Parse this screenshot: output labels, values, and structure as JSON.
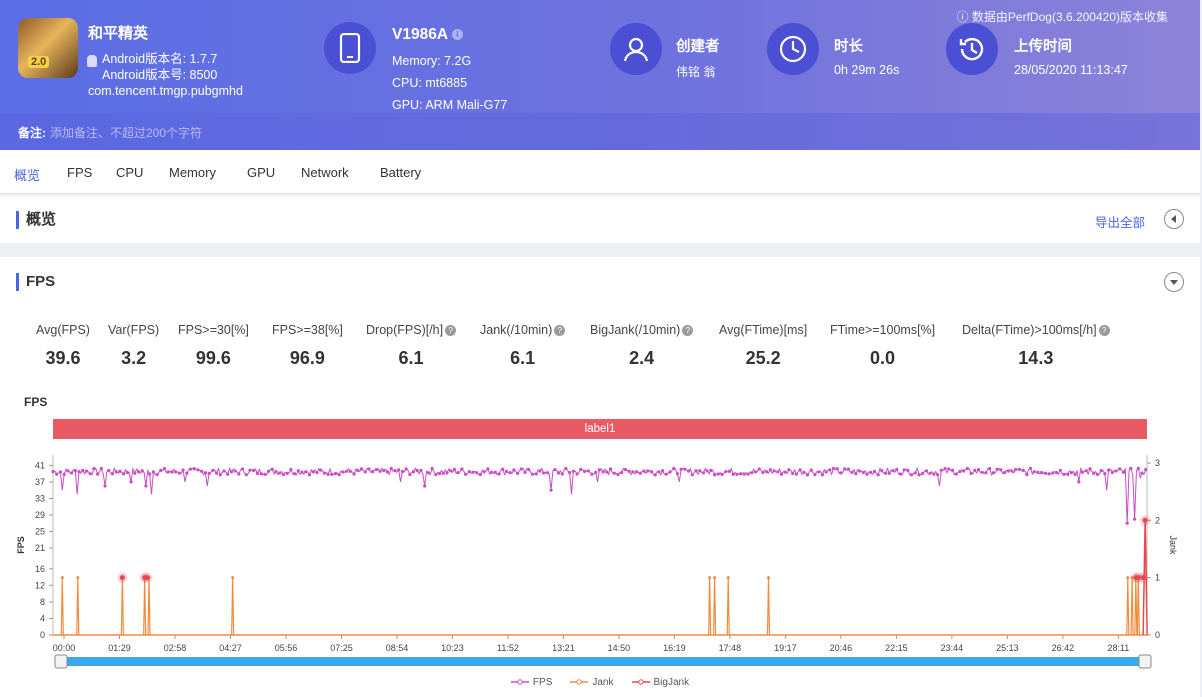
{
  "header": {
    "note": "数据由PerfDog(3.6.200420)版本收集",
    "app": {
      "name": "和平精英",
      "version_name": "Android版本名: 1.7.7",
      "version_code": "Android版本号: 8500",
      "package": "com.tencent.tmgp.pubgmhd",
      "icon_text": "2.0"
    },
    "device": {
      "model": "V1986A",
      "memory": "Memory: 7.2G",
      "cpu": "CPU: mt6885",
      "gpu": "GPU: ARM Mali-G77"
    },
    "creator": {
      "label": "创建者",
      "value": "伟铭 翁"
    },
    "duration": {
      "label": "时长",
      "value": "0h 29m 26s"
    },
    "upload": {
      "label": "上传时间",
      "value": "28/05/2020 11:13:47"
    }
  },
  "memo": {
    "label": "备注:",
    "placeholder": "添加备注、不超过200个字符"
  },
  "tabs": [
    "概览",
    "FPS",
    "CPU",
    "Memory",
    "GPU",
    "Network",
    "Battery"
  ],
  "overview": {
    "title": "概览",
    "export": "导出全部"
  },
  "fps": {
    "title": "FPS",
    "stats": [
      {
        "label": "Avg(FPS)",
        "value": "39.6",
        "help": false
      },
      {
        "label": "Var(FPS)",
        "value": "3.2",
        "help": false
      },
      {
        "label": "FPS>=30[%]",
        "value": "99.6",
        "help": false
      },
      {
        "label": "FPS>=38[%]",
        "value": "96.9",
        "help": false
      },
      {
        "label": "Drop(FPS)[/h]",
        "value": "6.1",
        "help": true
      },
      {
        "label": "Jank(/10min)",
        "value": "6.1",
        "help": true
      },
      {
        "label": "BigJank(/10min)",
        "value": "2.4",
        "help": true
      },
      {
        "label": "Avg(FTime)[ms]",
        "value": "25.2",
        "help": false
      },
      {
        "label": "FTime>=100ms[%]",
        "value": "0.0",
        "help": false
      },
      {
        "label": "Delta(FTime)>100ms[/h]",
        "value": "14.3",
        "help": true
      }
    ],
    "chart_title": "FPS",
    "label_bar": "label1"
  },
  "chart_data": {
    "type": "line",
    "title": "FPS",
    "xlabel": "",
    "ylabel": "FPS",
    "y2label": "Jank",
    "x_ticks": [
      "00:00",
      "01:29",
      "02:58",
      "04:27",
      "05:56",
      "07:25",
      "08:54",
      "10:23",
      "11:52",
      "13:21",
      "14:50",
      "16:19",
      "17:48",
      "19:17",
      "20:46",
      "22:15",
      "23:44",
      "25:13",
      "26:42",
      "28:11"
    ],
    "y_ticks": [
      0,
      4,
      8,
      12,
      16,
      21,
      25,
      29,
      33,
      37,
      41
    ],
    "y2_ticks": [
      0,
      1,
      2,
      3
    ],
    "ylim": [
      0,
      43.5
    ],
    "y2lim": [
      0,
      3
    ],
    "xlim_seconds": [
      0,
      1766
    ],
    "series": [
      {
        "name": "FPS",
        "color": "#c94cc4",
        "baseline": 39.5,
        "dips": [
          [
            15,
            35
          ],
          [
            40,
            34
          ],
          [
            85,
            36
          ],
          [
            125,
            37
          ],
          [
            150,
            36
          ],
          [
            158,
            34
          ],
          [
            213,
            37
          ],
          [
            250,
            36
          ],
          [
            560,
            37
          ],
          [
            600,
            36
          ],
          [
            805,
            35
          ],
          [
            838,
            34
          ],
          [
            880,
            37
          ],
          [
            1010,
            37
          ],
          [
            1430,
            36
          ],
          [
            1655,
            37
          ],
          [
            1700,
            35
          ],
          [
            1735,
            27
          ],
          [
            1745,
            28
          ],
          [
            1755,
            38
          ]
        ]
      },
      {
        "name": "Jank",
        "color": "#f08b3e",
        "seconds": [
          15,
          40,
          112,
          148,
          155,
          290,
          1060,
          1068,
          1090,
          1155,
          1735,
          1742,
          1748,
          1752
        ]
      },
      {
        "name": "BigJank",
        "color": "#e8474f",
        "seconds": [
          112,
          148,
          152,
          1748,
          1752,
          1760
        ],
        "peak_seconds": [
          1763
        ]
      }
    ],
    "legend": "bottom",
    "grid": true
  }
}
